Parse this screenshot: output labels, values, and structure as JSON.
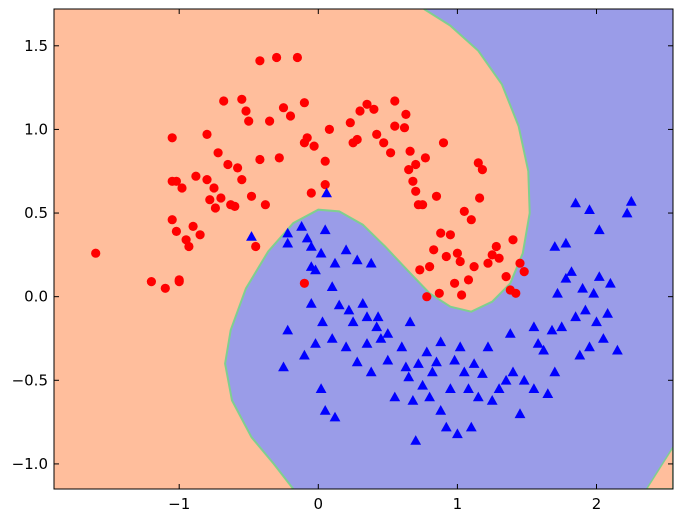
{
  "chart_data": {
    "type": "scatter",
    "title": "",
    "xlabel": "",
    "ylabel": "",
    "xlim": [
      -1.9,
      2.55
    ],
    "ylim": [
      -1.15,
      1.72
    ],
    "x_ticks": [
      -1,
      0,
      1,
      2
    ],
    "x_tick_labels": [
      "−1",
      "0",
      "1",
      "2"
    ],
    "y_ticks": [
      -1.0,
      -0.5,
      0.0,
      0.5,
      1.0,
      1.5
    ],
    "y_tick_labels": [
      "−1.0",
      "−0.5",
      "0.0",
      "0.5",
      "1.0",
      "1.5"
    ],
    "grid": false,
    "legend": "none",
    "colors": {
      "region_class_0": "#ffbe9c",
      "region_class_1": "#9a9ce8",
      "boundary": "#7fcf8f",
      "class_0": "#ff0000",
      "class_1": "#0000ff"
    },
    "decision_boundary": [
      [
        0.76,
        1.72
      ],
      [
        0.95,
        1.62
      ],
      [
        1.15,
        1.47
      ],
      [
        1.32,
        1.27
      ],
      [
        1.44,
        1.02
      ],
      [
        1.51,
        0.75
      ],
      [
        1.52,
        0.5
      ],
      [
        1.47,
        0.26
      ],
      [
        1.38,
        0.08
      ],
      [
        1.25,
        -0.03
      ],
      [
        1.1,
        -0.09
      ],
      [
        0.95,
        -0.06
      ],
      [
        0.8,
        0.02
      ],
      [
        0.65,
        0.15
      ],
      [
        0.48,
        0.3
      ],
      [
        0.32,
        0.43
      ],
      [
        0.15,
        0.51
      ],
      [
        0.0,
        0.52
      ],
      [
        -0.18,
        0.44
      ],
      [
        -0.36,
        0.27
      ],
      [
        -0.52,
        0.05
      ],
      [
        -0.63,
        -0.2
      ],
      [
        -0.67,
        -0.4
      ],
      [
        -0.62,
        -0.62
      ],
      [
        -0.48,
        -0.84
      ],
      [
        -0.32,
        -1.0
      ],
      [
        -0.18,
        -1.15
      ]
    ],
    "boundary_bottom_right": [
      [
        2.36,
        -1.15
      ],
      [
        2.55,
        -0.9
      ]
    ],
    "series": [
      {
        "marker": "circle",
        "points": [
          [
            -1.6,
            0.26
          ],
          [
            -1.2,
            0.09
          ],
          [
            -1.1,
            0.05
          ],
          [
            -1.05,
            0.95
          ],
          [
            -1.05,
            0.69
          ],
          [
            -1.02,
            0.69
          ],
          [
            -1.05,
            0.46
          ],
          [
            -1.02,
            0.39
          ],
          [
            -1.0,
            0.1
          ],
          [
            -1.0,
            0.09
          ],
          [
            -0.98,
            0.65
          ],
          [
            -0.95,
            0.34
          ],
          [
            -0.93,
            0.3
          ],
          [
            -0.9,
            0.42
          ],
          [
            -0.88,
            0.72
          ],
          [
            -0.85,
            0.37
          ],
          [
            -0.8,
            0.97
          ],
          [
            -0.8,
            0.7
          ],
          [
            -0.78,
            0.58
          ],
          [
            -0.75,
            0.65
          ],
          [
            -0.74,
            0.53
          ],
          [
            -0.72,
            0.86
          ],
          [
            -0.68,
            1.17
          ],
          [
            -0.65,
            0.79
          ],
          [
            -0.63,
            0.55
          ],
          [
            -0.6,
            0.54
          ],
          [
            -0.58,
            0.77
          ],
          [
            -0.55,
            0.7
          ],
          [
            -0.55,
            1.18
          ],
          [
            -0.52,
            1.11
          ],
          [
            -0.5,
            1.05
          ],
          [
            -0.48,
            0.6
          ],
          [
            -0.45,
            0.3
          ],
          [
            -0.42,
            1.41
          ],
          [
            -0.42,
            0.82
          ],
          [
            -0.38,
            0.55
          ],
          [
            -0.35,
            1.05
          ],
          [
            -0.3,
            1.43
          ],
          [
            -0.28,
            0.83
          ],
          [
            -0.25,
            1.13
          ],
          [
            -0.2,
            1.08
          ],
          [
            -0.15,
            1.43
          ],
          [
            -0.1,
            0.92
          ],
          [
            -0.1,
            1.16
          ],
          [
            -0.08,
            0.95
          ],
          [
            -0.05,
            0.62
          ],
          [
            -0.03,
            0.9
          ],
          [
            0.05,
            0.81
          ],
          [
            0.08,
            1.0
          ],
          [
            0.23,
            1.04
          ],
          [
            0.25,
            0.92
          ],
          [
            0.28,
            0.94
          ],
          [
            0.3,
            1.11
          ],
          [
            0.35,
            1.15
          ],
          [
            0.4,
            1.12
          ],
          [
            0.42,
            0.97
          ],
          [
            0.47,
            0.92
          ],
          [
            0.52,
            0.86
          ],
          [
            0.55,
            1.02
          ],
          [
            0.63,
            1.09
          ],
          [
            0.66,
            0.87
          ],
          [
            0.68,
            0.69
          ],
          [
            0.7,
            0.79
          ],
          [
            0.7,
            0.63
          ],
          [
            0.72,
            0.55
          ],
          [
            0.75,
            0.55
          ],
          [
            0.77,
            0.83
          ],
          [
            0.78,
            0.0
          ],
          [
            0.8,
            0.18
          ],
          [
            0.85,
            0.6
          ],
          [
            0.87,
            0.02
          ],
          [
            0.88,
            0.38
          ],
          [
            0.9,
            0.92
          ],
          [
            0.92,
            0.24
          ],
          [
            0.95,
            0.37
          ],
          [
            0.98,
            0.08
          ],
          [
            1.0,
            0.26
          ],
          [
            1.02,
            0.21
          ],
          [
            1.05,
            0.51
          ],
          [
            1.08,
            0.1
          ],
          [
            1.1,
            0.46
          ],
          [
            1.12,
            0.18
          ],
          [
            1.15,
            0.8
          ],
          [
            1.18,
            0.76
          ],
          [
            1.22,
            0.2
          ],
          [
            1.25,
            0.25
          ],
          [
            1.28,
            0.3
          ],
          [
            1.3,
            0.23
          ],
          [
            1.35,
            0.12
          ],
          [
            1.38,
            0.04
          ],
          [
            1.4,
            0.34
          ],
          [
            1.42,
            0.02
          ],
          [
            1.45,
            0.2
          ],
          [
            1.48,
            0.15
          ],
          [
            -0.1,
            0.08
          ],
          [
            0.05,
            0.67
          ],
          [
            0.55,
            1.17
          ],
          [
            0.65,
            0.76
          ],
          [
            0.73,
            0.16
          ],
          [
            0.83,
            0.28
          ],
          [
            1.03,
            0.01
          ],
          [
            1.16,
            0.59
          ],
          [
            0.62,
            1.01
          ],
          [
            -0.7,
            0.59
          ]
        ]
      },
      {
        "marker": "triangle",
        "points": [
          [
            0.06,
            0.62
          ],
          [
            -0.48,
            0.36
          ],
          [
            -0.22,
            0.32
          ],
          [
            -0.12,
            0.42
          ],
          [
            -0.08,
            0.35
          ],
          [
            -0.05,
            0.3
          ],
          [
            0.02,
            0.26
          ],
          [
            0.05,
            0.4
          ],
          [
            0.12,
            0.2
          ],
          [
            0.2,
            0.28
          ],
          [
            0.28,
            0.22
          ],
          [
            0.38,
            0.2
          ],
          [
            -0.22,
            -0.2
          ],
          [
            -0.1,
            -0.35
          ],
          [
            -0.05,
            -0.04
          ],
          [
            -0.02,
            -0.28
          ],
          [
            0.03,
            -0.15
          ],
          [
            0.1,
            -0.25
          ],
          [
            0.15,
            -0.05
          ],
          [
            0.2,
            -0.3
          ],
          [
            0.25,
            -0.15
          ],
          [
            0.28,
            -0.39
          ],
          [
            0.32,
            -0.04
          ],
          [
            0.35,
            -0.28
          ],
          [
            0.38,
            -0.45
          ],
          [
            0.42,
            -0.18
          ],
          [
            0.45,
            -0.25
          ],
          [
            0.5,
            -0.38
          ],
          [
            0.55,
            -0.6
          ],
          [
            0.6,
            -0.3
          ],
          [
            0.63,
            -0.42
          ],
          [
            0.65,
            -0.48
          ],
          [
            0.68,
            -0.62
          ],
          [
            0.7,
            -0.86
          ],
          [
            0.72,
            -0.4
          ],
          [
            0.75,
            -0.53
          ],
          [
            0.78,
            -0.33
          ],
          [
            0.82,
            -0.45
          ],
          [
            0.85,
            -0.39
          ],
          [
            0.88,
            -0.27
          ],
          [
            0.92,
            -0.78
          ],
          [
            0.95,
            -0.55
          ],
          [
            0.98,
            -0.38
          ],
          [
            1.02,
            -0.3
          ],
          [
            1.05,
            -0.45
          ],
          [
            1.08,
            -0.55
          ],
          [
            1.12,
            -0.4
          ],
          [
            1.15,
            -0.6
          ],
          [
            1.18,
            -0.46
          ],
          [
            1.22,
            -0.3
          ],
          [
            1.25,
            -0.62
          ],
          [
            1.3,
            -0.55
          ],
          [
            1.35,
            -0.5
          ],
          [
            1.4,
            -0.45
          ],
          [
            1.48,
            -0.5
          ],
          [
            1.55,
            -0.55
          ],
          [
            1.58,
            -0.28
          ],
          [
            1.62,
            -0.32
          ],
          [
            1.65,
            -0.58
          ],
          [
            1.68,
            -0.2
          ],
          [
            1.7,
            -0.45
          ],
          [
            1.72,
            0.02
          ],
          [
            1.75,
            -0.18
          ],
          [
            1.78,
            0.11
          ],
          [
            1.82,
            0.15
          ],
          [
            1.85,
            -0.12
          ],
          [
            1.88,
            -0.35
          ],
          [
            1.9,
            0.05
          ],
          [
            1.92,
            -0.08
          ],
          [
            1.95,
            -0.3
          ],
          [
            1.98,
            0.02
          ],
          [
            2.0,
            -0.15
          ],
          [
            2.02,
            0.12
          ],
          [
            2.05,
            -0.25
          ],
          [
            2.08,
            -0.1
          ],
          [
            2.1,
            0.08
          ],
          [
            2.15,
            -0.32
          ],
          [
            2.22,
            0.5
          ],
          [
            2.25,
            0.57
          ],
          [
            1.7,
            0.3
          ],
          [
            1.78,
            0.32
          ],
          [
            1.85,
            0.56
          ],
          [
            1.95,
            0.52
          ],
          [
            2.02,
            0.4
          ],
          [
            0.43,
            -0.12
          ],
          [
            -0.25,
            -0.42
          ],
          [
            0.05,
            -0.68
          ],
          [
            0.12,
            -0.72
          ],
          [
            0.02,
            -0.55
          ],
          [
            1.55,
            -0.18
          ],
          [
            -0.05,
            0.18
          ],
          [
            0.1,
            0.06
          ],
          [
            0.22,
            -0.08
          ],
          [
            0.35,
            -0.12
          ],
          [
            0.5,
            -0.22
          ],
          [
            0.66,
            -0.15
          ],
          [
            0.8,
            -0.6
          ],
          [
            1.0,
            -0.82
          ],
          [
            1.1,
            -0.78
          ],
          [
            1.38,
            -0.22
          ],
          [
            1.45,
            -0.7
          ],
          [
            0.88,
            -0.68
          ],
          [
            -0.22,
            0.38
          ],
          [
            -0.02,
            0.16
          ]
        ]
      }
    ]
  }
}
